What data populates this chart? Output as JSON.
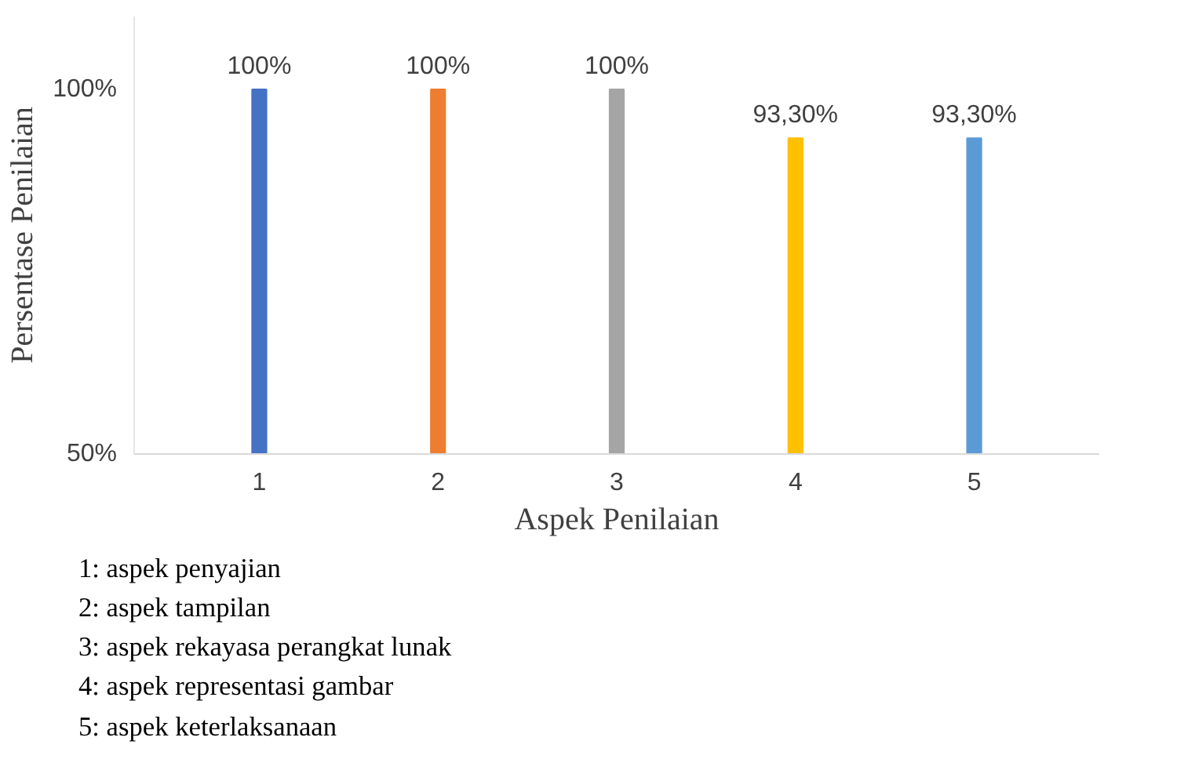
{
  "chart_data": {
    "type": "bar",
    "xlabel": "Aspek Penilaian",
    "ylabel": "Persentase Penilaian",
    "categories": [
      "1",
      "2",
      "3",
      "4",
      "5"
    ],
    "values": [
      100,
      100,
      100,
      93.3,
      93.3
    ],
    "colors": [
      "#4472c4",
      "#ed7d31",
      "#a5a5a5",
      "#ffc000",
      "#5b9bd5"
    ],
    "value_labels": [
      "100%",
      "100%",
      "100%",
      "93,30%",
      "93,30%"
    ],
    "ylim": [
      50,
      110
    ],
    "yticks": [
      {
        "value": 50,
        "label": "50%"
      },
      {
        "value": 100,
        "label": "100%"
      }
    ],
    "grid": false,
    "annotations": [
      "1: aspek penyajian",
      "2: aspek tampilan",
      "3: aspek rekayasa perangkat lunak",
      "4: aspek representasi gambar",
      "5: aspek keterlaksanaan"
    ]
  }
}
